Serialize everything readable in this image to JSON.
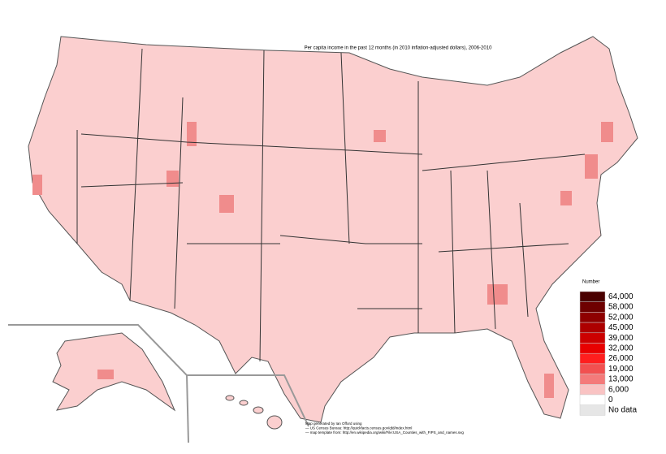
{
  "title": "Per capita income in the past 12 months (in 2010 inflation-adjusted dollars), 2006-2010",
  "legend": {
    "title": "Number",
    "entries": [
      {
        "label": "64,000",
        "color": "#4a0000"
      },
      {
        "label": "58,000",
        "color": "#6e0000"
      },
      {
        "label": "52,000",
        "color": "#8e0000"
      },
      {
        "label": "45,000",
        "color": "#ad0000"
      },
      {
        "label": "39,000",
        "color": "#cc0000"
      },
      {
        "label": "32,000",
        "color": "#e80000"
      },
      {
        "label": "26,000",
        "color": "#ff1e1e"
      },
      {
        "label": "19,000",
        "color": "#f25050"
      },
      {
        "label": "13,000",
        "color": "#f47a7a"
      },
      {
        "label": "6,000",
        "color": "#f9c3c3"
      },
      {
        "label": "0",
        "color": "#ffffff"
      },
      {
        "label": "No data",
        "color": "#e6e6e6"
      }
    ]
  },
  "credits": [
    "Map generated by Ian Offord using",
    "— US Census Bureau: http://quickfacts.census.gov/qfd/index.html",
    "— map template from: http://en.wikipedia.org/wiki/File:USA_Counties_with_FIPS_and_names.svg"
  ]
}
